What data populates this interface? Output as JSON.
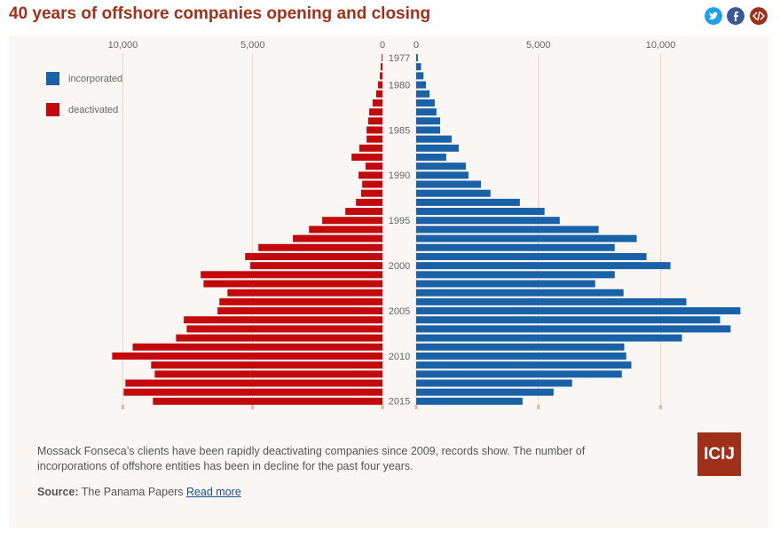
{
  "chart_data": {
    "type": "pyramid",
    "title": "40 years of offshore companies opening and closing",
    "categories": [
      "1977",
      null,
      null,
      "1980",
      null,
      null,
      null,
      null,
      "1985",
      null,
      null,
      null,
      null,
      "1990",
      null,
      null,
      null,
      null,
      "1995",
      null,
      null,
      null,
      null,
      "2000",
      null,
      null,
      null,
      null,
      "2005",
      null,
      null,
      null,
      null,
      "2010",
      null,
      null,
      null,
      null,
      "2015"
    ],
    "series": [
      {
        "name": "incorporated",
        "color": "#1a62a8",
        "axis": "x",
        "values": [
          70,
          200,
          300,
          400,
          550,
          760,
          830,
          980,
          980,
          1450,
          1740,
          1230,
          2030,
          2140,
          2650,
          3040,
          4240,
          5250,
          5870,
          7460,
          9020,
          8120,
          9420,
          10400,
          8120,
          7320,
          8480,
          11050,
          13260,
          12430,
          12860,
          10870,
          8510,
          8590,
          8800,
          8410,
          6380,
          5620,
          4350
        ]
      },
      {
        "name": "deactivated",
        "color": "#c4090c",
        "axis": "x2",
        "values": [
          30,
          70,
          100,
          170,
          240,
          380,
          510,
          550,
          610,
          610,
          890,
          1190,
          650,
          920,
          780,
          820,
          1020,
          1430,
          2320,
          2830,
          3450,
          4780,
          5290,
          5090,
          7000,
          6890,
          5970,
          6280,
          6350,
          7650,
          7540,
          7950,
          9620,
          10410,
          8910,
          8770,
          9900,
          9970,
          8840
        ]
      }
    ],
    "xlim": [
      0,
      13500
    ],
    "xticks": [
      0,
      {
        "value": 5000,
        "label": "5,000"
      },
      {
        "value": 10000,
        "label": "10,000"
      }
    ],
    "x2lim": [
      0,
      10800
    ],
    "x2ticks": [
      0,
      {
        "value": 5000,
        "label": "5,000"
      },
      {
        "value": 10000,
        "label": "10,000"
      }
    ],
    "grid": true,
    "legend": "top-left"
  },
  "footer": {
    "caption": "Mossack Fonseca’s clients have been rapidly deactivating companies since 2009, records show. The number of incorporations of offshore entities has been in decline for the past four years.",
    "source_label": "Source:",
    "source": "The Panama Papers",
    "link": "Read more",
    "logo": "ICIJ"
  }
}
